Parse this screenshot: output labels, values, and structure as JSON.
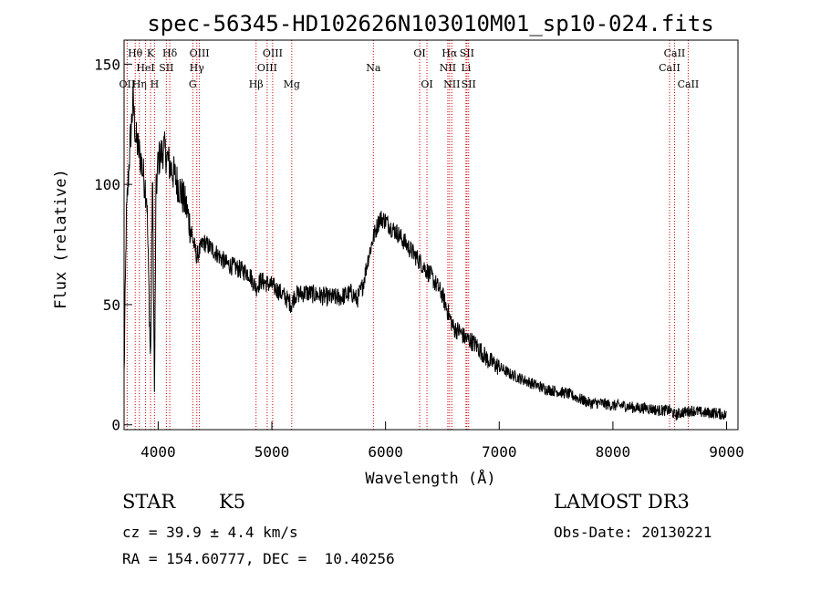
{
  "chart_data": {
    "type": "line",
    "title": "spec-56345-HD102626N103010M01_sp10-024.fits",
    "xlabel": "Wavelength (Å)",
    "ylabel": "Flux (relative)",
    "xlim": [
      3700,
      9100
    ],
    "ylim": [
      -2,
      160
    ],
    "xticks": [
      4000,
      5000,
      6000,
      7000,
      8000,
      9000
    ],
    "yticks": [
      0,
      50,
      100,
      150
    ],
    "grid": false,
    "line_color": "#000000",
    "marker_color": "#cc0000",
    "series": [
      {
        "x": [
          3700,
          3720,
          3750,
          3780,
          3800,
          3850,
          3900,
          3933,
          3950,
          3968,
          3980,
          4000,
          4050,
          4100,
          4150,
          4200,
          4250,
          4300,
          4340,
          4400,
          4500,
          4600,
          4700,
          4800,
          4861,
          4900,
          5000,
          5100,
          5175,
          5200,
          5300,
          5400,
          5500,
          5600,
          5700,
          5750,
          5800,
          5850,
          5893,
          5950,
          6000,
          6050,
          6100,
          6200,
          6300,
          6400,
          6450,
          6500,
          6563,
          6600,
          6650,
          6700,
          6750,
          6800,
          6900,
          7000,
          7100,
          7200,
          7300,
          7400,
          7500,
          7600,
          7700,
          7800,
          7900,
          8000,
          8100,
          8200,
          8300,
          8400,
          8500,
          8550,
          8600,
          8700,
          8800,
          8900,
          9000
        ],
        "values": [
          20,
          85,
          115,
          135,
          120,
          110,
          95,
          25,
          105,
          10,
          95,
          110,
          115,
          108,
          103,
          97,
          90,
          78,
          70,
          76,
          72,
          67,
          65,
          63,
          57,
          60,
          58,
          54,
          50,
          54,
          55,
          54,
          53,
          53,
          55,
          52,
          58,
          70,
          78,
          86,
          85,
          82,
          80,
          74,
          68,
          62,
          58,
          54,
          45,
          40,
          39,
          36,
          35,
          33,
          27,
          24,
          21,
          19,
          17,
          15,
          14,
          13,
          11,
          9,
          9,
          8,
          8,
          7,
          7,
          6,
          6,
          4,
          5,
          6,
          5,
          5,
          4
        ]
      }
    ],
    "line_markers": [
      {
        "label": "OII",
        "x": 3727,
        "row": 3
      },
      {
        "label": "Hθ",
        "x": 3798,
        "row": 1
      },
      {
        "label": "Hη",
        "x": 3835,
        "row": 3
      },
      {
        "label": "HeI",
        "x": 3889,
        "row": 2
      },
      {
        "label": "K",
        "x": 3933,
        "row": 1
      },
      {
        "label": "H",
        "x": 3968,
        "row": 3
      },
      {
        "label": "SII",
        "x": 4072,
        "row": 2
      },
      {
        "label": "Hδ",
        "x": 4102,
        "row": 1
      },
      {
        "label": "G",
        "x": 4304,
        "row": 3
      },
      {
        "label": "Hγ",
        "x": 4340,
        "row": 2
      },
      {
        "label": "OIII",
        "x": 4363,
        "row": 1
      },
      {
        "label": "Hβ",
        "x": 4861,
        "row": 3
      },
      {
        "label": "OIII",
        "x": 4959,
        "row": 2
      },
      {
        "label": "OIII",
        "x": 5007,
        "row": 1
      },
      {
        "label": "Mg",
        "x": 5175,
        "row": 3
      },
      {
        "label": "Na",
        "x": 5893,
        "row": 2
      },
      {
        "label": "OI",
        "x": 6300,
        "row": 1
      },
      {
        "label": "OI",
        "x": 6364,
        "row": 3
      },
      {
        "label": "NII",
        "x": 6548,
        "row": 2
      },
      {
        "label": "Hα",
        "x": 6563,
        "row": 1
      },
      {
        "label": "NII",
        "x": 6583,
        "row": 3
      },
      {
        "label": "Li",
        "x": 6708,
        "row": 2
      },
      {
        "label": "SII",
        "x": 6716,
        "row": 1
      },
      {
        "label": "SII",
        "x": 6731,
        "row": 3
      },
      {
        "label": "CaII",
        "x": 8498,
        "row": 2
      },
      {
        "label": "CaII",
        "x": 8542,
        "row": 1
      },
      {
        "label": "CaII",
        "x": 8662,
        "row": 3
      }
    ]
  },
  "info": {
    "class_label": "STAR",
    "subclass_label": "K5",
    "survey": "LAMOST DR3",
    "cz": "cz = 39.9 ± 4.4 km/s",
    "obs_date": "Obs-Date: 20130221",
    "coords": "RA = 154.60777, DEC =  10.40256"
  }
}
